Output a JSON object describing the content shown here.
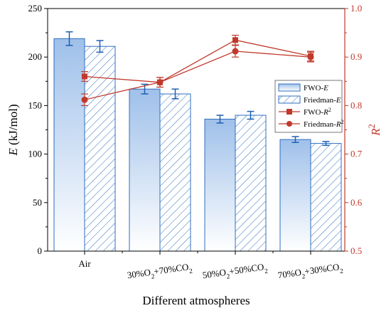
{
  "chart_data": {
    "type": "bar",
    "categories": [
      {
        "parts": [
          {
            "t": "Air"
          }
        ]
      },
      {
        "parts": [
          {
            "t": "30%O"
          },
          {
            "t": "2",
            "sub": true
          },
          {
            "t": "+70%CO"
          },
          {
            "t": "2",
            "sub": true
          }
        ]
      },
      {
        "parts": [
          {
            "t": "50%O"
          },
          {
            "t": "2",
            "sub": true
          },
          {
            "t": "+50%CO"
          },
          {
            "t": "2",
            "sub": true
          }
        ]
      },
      {
        "parts": [
          {
            "t": "70%O"
          },
          {
            "t": "2",
            "sub": true
          },
          {
            "t": "+30%CO"
          },
          {
            "t": "2",
            "sub": true
          }
        ]
      }
    ],
    "xlabel": "Different atmospheres",
    "ylabel_left": {
      "parts": [
        {
          "t": "E",
          "italic": true
        },
        {
          "t": " (kJ/mol)"
        }
      ]
    },
    "ylabel_right": {
      "parts": [
        {
          "t": "R",
          "italic": true
        },
        {
          "t": "2",
          "sup": true
        }
      ]
    },
    "ylim_left": [
      0,
      250
    ],
    "yticks_left": [
      "0",
      "50",
      "100",
      "150",
      "200",
      "250"
    ],
    "ylim_right": [
      0.5,
      1.0
    ],
    "yticks_right": [
      "0.5",
      "0.6",
      "0.7",
      "0.8",
      "0.9",
      "1.0"
    ],
    "grid": false,
    "legend_position": "right-middle",
    "bar_series": [
      {
        "name": {
          "parts": [
            {
              "t": "FWO-"
            },
            {
              "t": "E",
              "italic": true
            }
          ]
        },
        "fill": "gradient",
        "values": [
          219,
          167,
          136,
          115
        ],
        "errors": [
          7,
          5,
          4,
          3
        ]
      },
      {
        "name": {
          "parts": [
            {
              "t": "Friedman-"
            },
            {
              "t": "E",
              "italic": true
            }
          ]
        },
        "fill": "hatched",
        "values": [
          211,
          162,
          140,
          111
        ],
        "errors": [
          6,
          5,
          4,
          2
        ]
      }
    ],
    "line_series": [
      {
        "name": {
          "parts": [
            {
              "t": "FWO-"
            },
            {
              "t": "R",
              "italic": true
            },
            {
              "t": "2",
              "sup": true
            }
          ]
        },
        "marker": "square",
        "values": [
          0.86,
          0.848,
          0.935,
          0.902
        ],
        "errors": [
          0.01,
          0.01,
          0.01,
          0.01
        ]
      },
      {
        "name": {
          "parts": [
            {
              "t": "Friedman-"
            },
            {
              "t": "R",
              "italic": true
            },
            {
              "t": "2",
              "sup": true
            }
          ]
        },
        "marker": "circle",
        "values": [
          0.812,
          0.848,
          0.912,
          0.9
        ],
        "errors": [
          0.012,
          0.01,
          0.012,
          0.01
        ]
      }
    ],
    "colors": {
      "bar_edge": "#2f6fbf",
      "bar_fill_top": "#a9c8ee",
      "bar_fill_bottom": "#ffffff",
      "error": "#1f5fb0",
      "line": "#c0392b",
      "right_axis": "#c0392b"
    }
  }
}
